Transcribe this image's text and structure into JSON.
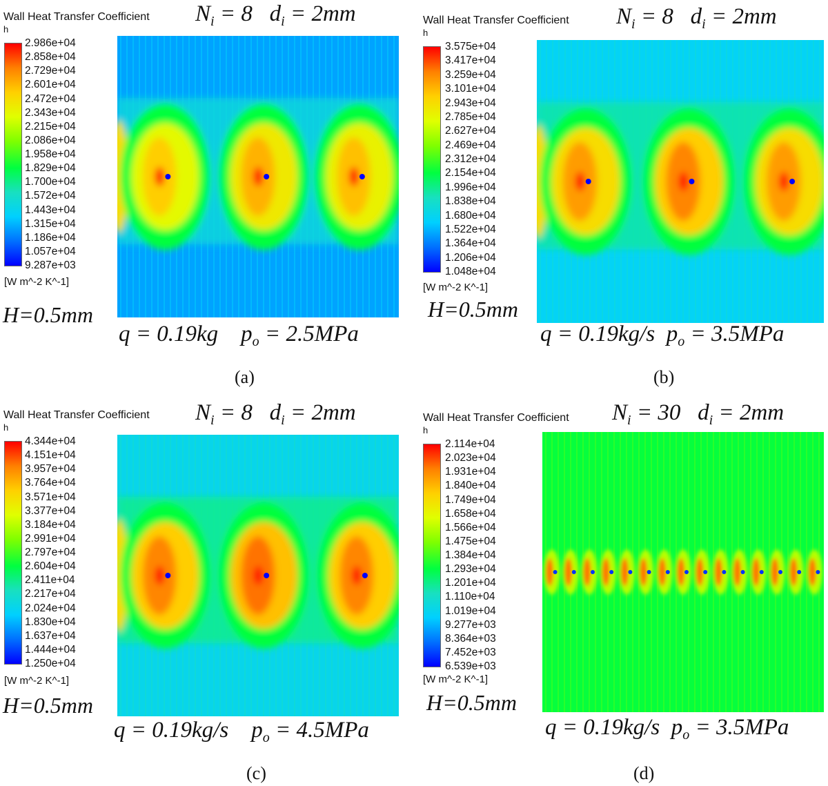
{
  "colors": {
    "colormap": [
      "#0000ff",
      "#0070ff",
      "#00d0ff",
      "#18e0c0",
      "#00ff40",
      "#7fff00",
      "#e0ff00",
      "#ffd000",
      "#ff8000",
      "#ff0000"
    ],
    "text": "#111111"
  },
  "chart_data": [
    {
      "type": "heatmap",
      "panel": "(a)",
      "title": "Wall Heat Transfer Coefficient",
      "variable": "h",
      "params": {
        "N_i": "8",
        "d_i": "2mm"
      },
      "colorbar": [
        "2.986e+04",
        "2.858e+04",
        "2.729e+04",
        "2.601e+04",
        "2.472e+04",
        "2.343e+04",
        "2.215e+04",
        "2.086e+04",
        "1.958e+04",
        "1.829e+04",
        "1.700e+04",
        "1.572e+04",
        "1.443e+04",
        "1.315e+04",
        "1.186e+04",
        "1.057e+04",
        "9.287e+03"
      ],
      "units": "[W m^-2 K^-1]",
      "H": "H=0.5mm",
      "q": "q = 0.19kg",
      "p_o": "2.5MPa",
      "background_level": 0.17,
      "hotspots": [
        {
          "cx": 0.17,
          "level": 0.78
        },
        {
          "cx": 0.52,
          "level": 0.82
        },
        {
          "cx": 0.86,
          "level": 0.8
        }
      ],
      "edge_hotspot": true
    },
    {
      "type": "heatmap",
      "panel": "(b)",
      "title": "Wall Heat Transfer Coefficient",
      "variable": "h",
      "params": {
        "N_i": "8",
        "d_i": "2mm"
      },
      "colorbar": [
        "3.575e+04",
        "3.417e+04",
        "3.259e+04",
        "3.101e+04",
        "2.943e+04",
        "2.785e+04",
        "2.627e+04",
        "2.469e+04",
        "2.312e+04",
        "2.154e+04",
        "1.996e+04",
        "1.838e+04",
        "1.680e+04",
        "1.522e+04",
        "1.364e+04",
        "1.206e+04",
        "1.048e+04"
      ],
      "units": "[W m^-2 K^-1]",
      "H": "H=0.5mm",
      "q": "q = 0.19kg/s",
      "p_o": "3.5MPa",
      "background_level": 0.24,
      "hotspots": [
        {
          "cx": 0.17,
          "level": 0.85
        },
        {
          "cx": 0.53,
          "level": 0.88
        },
        {
          "cx": 0.88,
          "level": 0.85
        }
      ],
      "edge_hotspot": true
    },
    {
      "type": "heatmap",
      "panel": "(c)",
      "title": "Wall Heat Transfer Coefficient",
      "variable": "h",
      "params": {
        "N_i": "8",
        "d_i": "2mm"
      },
      "colorbar": [
        "4.344e+04",
        "4.151e+04",
        "3.957e+04",
        "3.764e+04",
        "3.571e+04",
        "3.377e+04",
        "3.184e+04",
        "2.991e+04",
        "2.797e+04",
        "2.604e+04",
        "2.411e+04",
        "2.217e+04",
        "2.024e+04",
        "1.830e+04",
        "1.637e+04",
        "1.444e+04",
        "1.250e+04"
      ],
      "units": "[W m^-2 K^-1]",
      "H": "H=0.5mm",
      "q": "q = 0.19kg/s",
      "p_o": "4.5MPa",
      "background_level": 0.26,
      "hotspots": [
        {
          "cx": 0.17,
          "level": 0.88
        },
        {
          "cx": 0.52,
          "level": 0.9
        },
        {
          "cx": 0.87,
          "level": 0.88
        }
      ],
      "edge_hotspot": true
    },
    {
      "type": "heatmap",
      "panel": "(d)",
      "title": "Wall Heat Transfer Coefficient",
      "variable": "h",
      "params": {
        "N_i": "30",
        "d_i": "2mm"
      },
      "colorbar": [
        "2.114e+04",
        "2.023e+04",
        "1.931e+04",
        "1.840e+04",
        "1.749e+04",
        "1.658e+04",
        "1.566e+04",
        "1.475e+04",
        "1.384e+04",
        "1.293e+04",
        "1.201e+04",
        "1.110e+04",
        "1.019e+04",
        "9.277e+03",
        "8.364e+03",
        "7.452e+03",
        "6.539e+03"
      ],
      "units": "[W m^-2 K^-1]",
      "H": "H=0.5mm",
      "q": "q = 0.19kg/s",
      "p_o": "3.5MPa",
      "background_level": 0.45,
      "hotspot_count": 15,
      "hotspot_level": 0.9
    }
  ]
}
